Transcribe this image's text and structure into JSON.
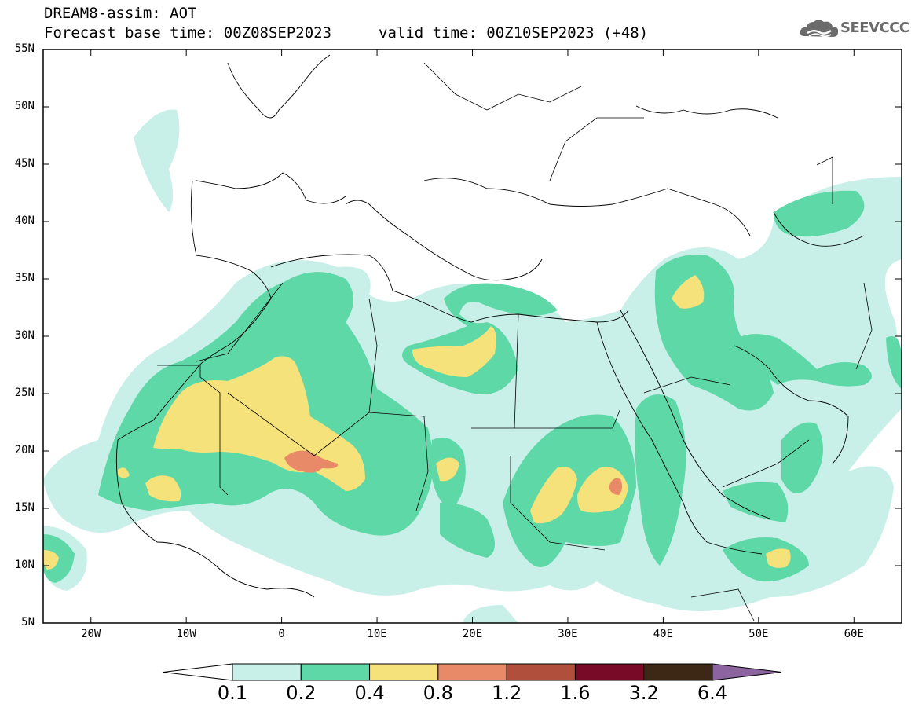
{
  "header": {
    "title": "DREAM8-assim: AOT",
    "base_time": "Forecast base time: 00Z08SEP2023",
    "valid_time": "valid time: 00Z10SEP2023 (+48)"
  },
  "logo": {
    "text": "SEEVCCC",
    "icon": "cloud-icon"
  },
  "map": {
    "lat_labels": [
      "55N",
      "50N",
      "45N",
      "40N",
      "35N",
      "30N",
      "25N",
      "20N",
      "15N",
      "10N",
      "5N"
    ],
    "lon_labels": [
      "20W",
      "10W",
      "0",
      "10E",
      "20E",
      "30E",
      "40E",
      "50E",
      "60E"
    ],
    "lat_range": [
      5,
      55
    ],
    "lon_range": [
      -25,
      65
    ]
  },
  "colorbar": {
    "labels": [
      "0.1",
      "0.2",
      "0.4",
      "0.8",
      "1.2",
      "1.6",
      "3.2",
      "6.4"
    ],
    "colors": [
      "#ffffff",
      "#c8f0e8",
      "#5fd8a8",
      "#f5e27a",
      "#e88a68",
      "#b0503c",
      "#780a28",
      "#3c2814",
      "#8c64a0"
    ]
  }
}
